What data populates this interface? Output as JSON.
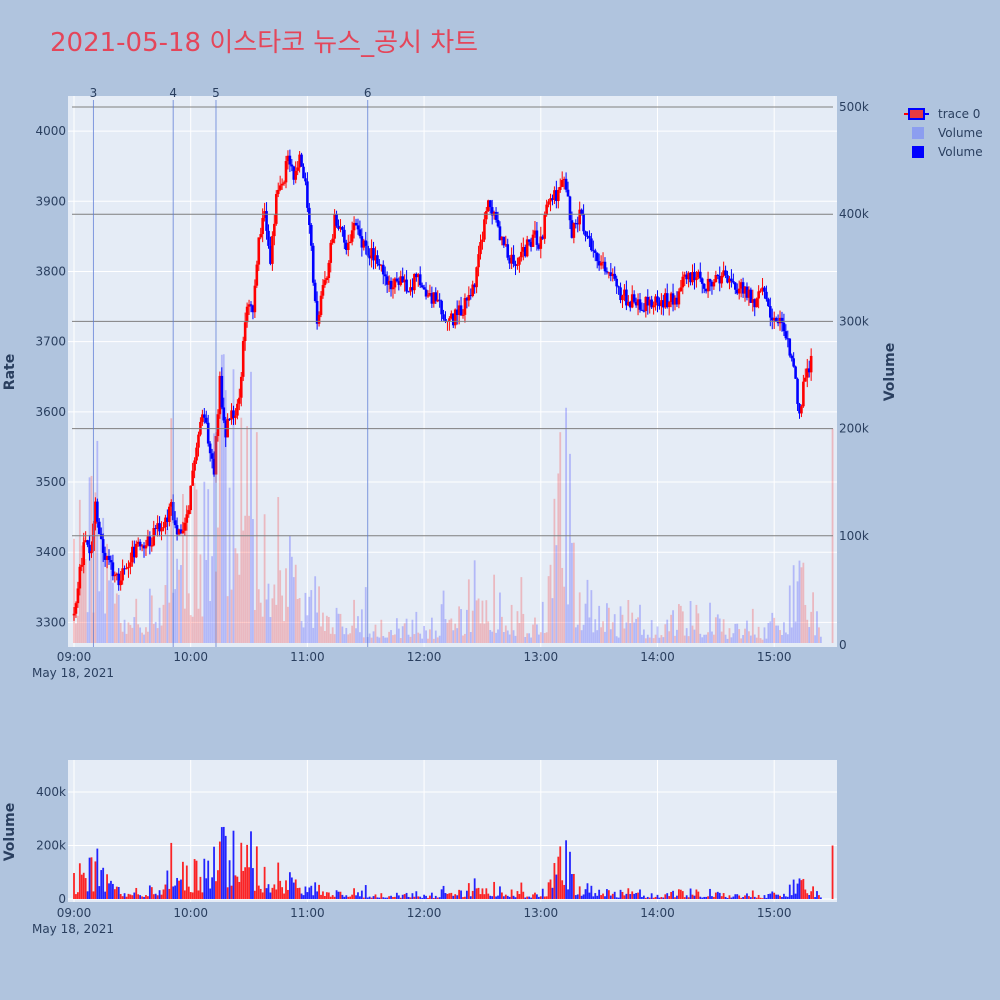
{
  "title": "2021-05-18 이스타코 뉴스_공시 차트",
  "colors": {
    "up": "#ff0000",
    "down": "#0000ff",
    "background": "#b0c4de",
    "plot_bg": "#e5ecf6",
    "title": "#e4465a",
    "text": "#2a3f5f",
    "hline": "#7f7f7f"
  },
  "chart_data": [
    {
      "type": "candlestick",
      "ylabel": "Rate",
      "y2label": "Volume",
      "x_range": [
        "09:00",
        "15:30"
      ],
      "ylim": [
        3265,
        4050
      ],
      "y2lim": [
        0,
        500000
      ],
      "y_ticks": [
        3300,
        3400,
        3500,
        3600,
        3700,
        3800,
        3900,
        4000
      ],
      "y2_ticks": [
        {
          "v": 0,
          "label": "0"
        },
        {
          "v": 100000,
          "label": "100k"
        },
        {
          "v": 200000,
          "label": "200k"
        },
        {
          "v": 300000,
          "label": "300k"
        },
        {
          "v": 400000,
          "label": "400k"
        },
        {
          "v": 500000,
          "label": "500k"
        }
      ],
      "x_ticks": [
        "09:00",
        "10:00",
        "11:00",
        "12:00",
        "13:00",
        "14:00",
        "15:00"
      ],
      "x_date_label": "May 18, 2021",
      "horizontal_lines_volume": [
        500000,
        400000,
        300000,
        200000,
        100000
      ],
      "event_markers": [
        {
          "label": "3",
          "time": "09:10"
        },
        {
          "label": "4",
          "time": "09:51"
        },
        {
          "label": "5",
          "time": "10:13"
        },
        {
          "label": "6",
          "time": "11:31"
        }
      ],
      "price_path": [
        [
          "09:00",
          3310
        ],
        [
          "09:03",
          3370
        ],
        [
          "09:06",
          3420
        ],
        [
          "09:09",
          3400
        ],
        [
          "09:11",
          3470
        ],
        [
          "09:14",
          3420
        ],
        [
          "09:18",
          3380
        ],
        [
          "09:22",
          3360
        ],
        [
          "09:26",
          3380
        ],
        [
          "09:30",
          3400
        ],
        [
          "09:35",
          3410
        ],
        [
          "09:40",
          3420
        ],
        [
          "09:45",
          3440
        ],
        [
          "09:50",
          3460
        ],
        [
          "09:55",
          3420
        ],
        [
          "09:59",
          3470
        ],
        [
          "10:03",
          3540
        ],
        [
          "10:06",
          3600
        ],
        [
          "10:09",
          3560
        ],
        [
          "10:12",
          3520
        ],
        [
          "10:15",
          3640
        ],
        [
          "10:18",
          3570
        ],
        [
          "10:21",
          3600
        ],
        [
          "10:24",
          3600
        ],
        [
          "10:28",
          3720
        ],
        [
          "10:30",
          3760
        ],
        [
          "10:32",
          3740
        ],
        [
          "10:35",
          3840
        ],
        [
          "10:38",
          3890
        ],
        [
          "10:41",
          3820
        ],
        [
          "10:44",
          3900
        ],
        [
          "10:47",
          3920
        ],
        [
          "10:50",
          3970
        ],
        [
          "10:53",
          3940
        ],
        [
          "10:56",
          3960
        ],
        [
          "10:59",
          3920
        ],
        [
          "11:02",
          3830
        ],
        [
          "11:05",
          3720
        ],
        [
          "11:08",
          3780
        ],
        [
          "11:11",
          3810
        ],
        [
          "11:14",
          3870
        ],
        [
          "11:17",
          3860
        ],
        [
          "11:20",
          3840
        ],
        [
          "11:24",
          3860
        ],
        [
          "11:28",
          3840
        ],
        [
          "11:32",
          3830
        ],
        [
          "11:36",
          3820
        ],
        [
          "11:40",
          3790
        ],
        [
          "11:44",
          3780
        ],
        [
          "11:48",
          3790
        ],
        [
          "11:52",
          3780
        ],
        [
          "11:56",
          3790
        ],
        [
          "12:00",
          3780
        ],
        [
          "12:05",
          3760
        ],
        [
          "12:10",
          3740
        ],
        [
          "12:15",
          3730
        ],
        [
          "12:20",
          3750
        ],
        [
          "12:25",
          3770
        ],
        [
          "12:30",
          3850
        ],
        [
          "12:33",
          3890
        ],
        [
          "12:36",
          3880
        ],
        [
          "12:40",
          3840
        ],
        [
          "12:44",
          3820
        ],
        [
          "12:48",
          3810
        ],
        [
          "12:52",
          3830
        ],
        [
          "12:56",
          3850
        ],
        [
          "13:00",
          3840
        ],
        [
          "13:04",
          3900
        ],
        [
          "13:08",
          3910
        ],
        [
          "13:12",
          3940
        ],
        [
          "13:16",
          3850
        ],
        [
          "13:20",
          3880
        ],
        [
          "13:24",
          3840
        ],
        [
          "13:28",
          3830
        ],
        [
          "13:32",
          3810
        ],
        [
          "13:36",
          3790
        ],
        [
          "13:40",
          3770
        ],
        [
          "13:44",
          3760
        ],
        [
          "13:48",
          3760
        ],
        [
          "13:52",
          3750
        ],
        [
          "13:56",
          3760
        ],
        [
          "14:00",
          3750
        ],
        [
          "14:05",
          3760
        ],
        [
          "14:10",
          3760
        ],
        [
          "14:15",
          3800
        ],
        [
          "14:20",
          3790
        ],
        [
          "14:25",
          3780
        ],
        [
          "14:30",
          3790
        ],
        [
          "14:35",
          3800
        ],
        [
          "14:40",
          3780
        ],
        [
          "14:45",
          3770
        ],
        [
          "14:50",
          3760
        ],
        [
          "14:55",
          3770
        ],
        [
          "15:00",
          3730
        ],
        [
          "15:04",
          3720
        ],
        [
          "15:07",
          3700
        ],
        [
          "15:10",
          3660
        ],
        [
          "15:13",
          3600
        ],
        [
          "15:16",
          3650
        ],
        [
          "15:19",
          3670
        ]
      ],
      "volume_profile": [
        [
          "09:00",
          70000
        ],
        [
          "09:10",
          95000
        ],
        [
          "09:20",
          45000
        ],
        [
          "09:30",
          25000
        ],
        [
          "09:40",
          30000
        ],
        [
          "09:45",
          65000
        ],
        [
          "09:50",
          160000
        ],
        [
          "09:53",
          200000
        ],
        [
          "09:58",
          110000
        ],
        [
          "10:05",
          80000
        ],
        [
          "10:13",
          200000
        ],
        [
          "10:20",
          170000
        ],
        [
          "10:25",
          150000
        ],
        [
          "10:30",
          110000
        ],
        [
          "10:40",
          90000
        ],
        [
          "10:50",
          70000
        ],
        [
          "11:00",
          45000
        ],
        [
          "11:10",
          35000
        ],
        [
          "11:20",
          30000
        ],
        [
          "11:30",
          20000
        ],
        [
          "11:40",
          20000
        ],
        [
          "11:50",
          18000
        ],
        [
          "12:00",
          16000
        ],
        [
          "12:10",
          15000
        ],
        [
          "12:20",
          22000
        ],
        [
          "12:27",
          55000
        ],
        [
          "12:30",
          80000
        ],
        [
          "12:35",
          40000
        ],
        [
          "12:45",
          25000
        ],
        [
          "12:55",
          18000
        ],
        [
          "13:03",
          40000
        ],
        [
          "13:07",
          110000
        ],
        [
          "13:12",
          180000
        ],
        [
          "13:15",
          70000
        ],
        [
          "13:25",
          30000
        ],
        [
          "13:35",
          22000
        ],
        [
          "13:45",
          18000
        ],
        [
          "13:55",
          16000
        ],
        [
          "14:05",
          15000
        ],
        [
          "14:12",
          22000
        ],
        [
          "14:18",
          25000
        ],
        [
          "14:25",
          18000
        ],
        [
          "14:35",
          15000
        ],
        [
          "14:45",
          15000
        ],
        [
          "14:55",
          12000
        ],
        [
          "15:00",
          20000
        ],
        [
          "15:05",
          15000
        ],
        [
          "15:08",
          40000
        ],
        [
          "15:12",
          60000
        ],
        [
          "15:16",
          50000
        ],
        [
          "15:19",
          35000
        ],
        [
          "15:25",
          0
        ],
        [
          "15:29",
          0
        ],
        [
          "15:30",
          200000
        ]
      ],
      "legend": [
        {
          "label": "trace 0",
          "kind": "candle"
        },
        {
          "label": "Volume",
          "kind": "volume-light"
        },
        {
          "label": "Volume",
          "kind": "volume-dark"
        }
      ]
    },
    {
      "type": "bar",
      "ylabel": "Volume",
      "ylim": [
        0,
        520000
      ],
      "y_ticks": [
        {
          "v": 0,
          "label": "0"
        },
        {
          "v": 200000,
          "label": "200k"
        },
        {
          "v": 400000,
          "label": "400k"
        }
      ],
      "x_ticks": [
        "09:00",
        "10:00",
        "11:00",
        "12:00",
        "13:00",
        "14:00",
        "15:00"
      ],
      "x_date_label": "May 18, 2021"
    }
  ]
}
